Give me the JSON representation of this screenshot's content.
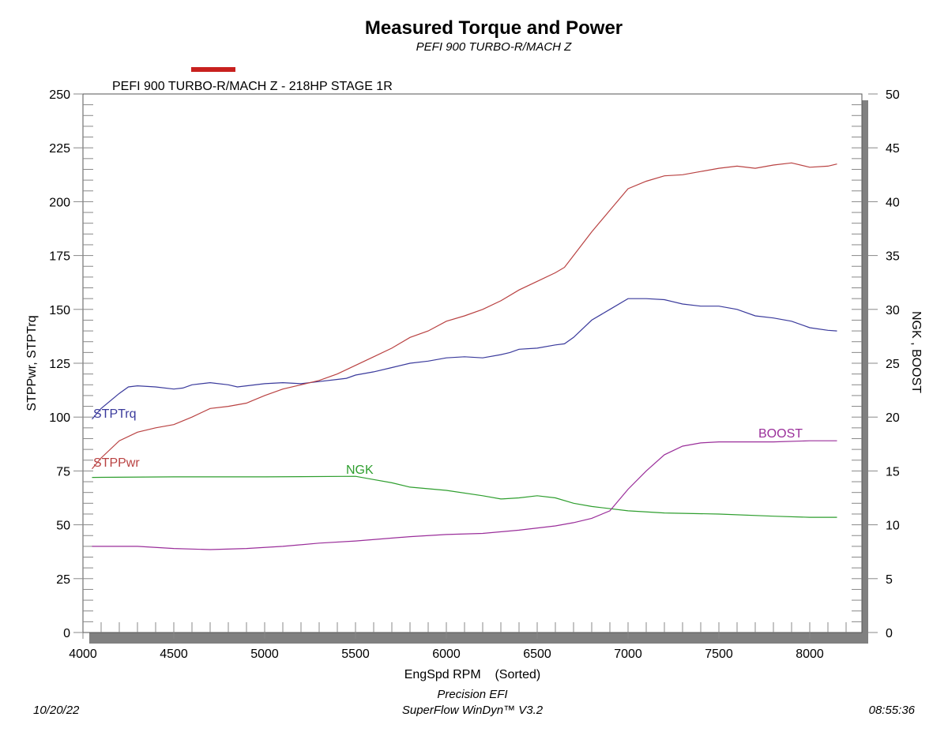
{
  "chart_data": {
    "type": "line",
    "title": "Measured Torque and Power",
    "subtitle": "PEFI 900 TURBO-R/MACH Z",
    "run_label": "PEFI 900 TURBO-R/MACH Z - 218HP STAGE 1R",
    "run_color": "#c8201e",
    "xlabel": "EngSpd RPM    (Sorted)",
    "ylabel": "STPPwr, STPTrq",
    "y2label": "NGK  , BOOST",
    "xlim": [
      4000,
      8290
    ],
    "ylim": [
      0,
      250
    ],
    "y2lim": [
      0,
      50
    ],
    "xticks": [
      4000,
      4500,
      5000,
      5500,
      6000,
      6500,
      7000,
      7500,
      8000
    ],
    "yticks": [
      0,
      25,
      50,
      75,
      100,
      125,
      150,
      175,
      200,
      225,
      250
    ],
    "y2ticks": [
      0,
      5,
      10,
      15,
      20,
      25,
      30,
      35,
      40,
      45,
      50
    ],
    "grid": false,
    "series": [
      {
        "name": "STPTrq",
        "axis": "left",
        "color": "#3a3a9c",
        "x": [
          4050,
          4100,
          4200,
          4250,
          4300,
          4400,
          4500,
          4550,
          4600,
          4700,
          4800,
          4850,
          4900,
          5000,
          5100,
          5200,
          5300,
          5400,
          5450,
          5500,
          5600,
          5700,
          5800,
          5900,
          6000,
          6100,
          6200,
          6300,
          6350,
          6400,
          6500,
          6600,
          6650,
          6700,
          6800,
          6900,
          7000,
          7100,
          7200,
          7300,
          7400,
          7500,
          7600,
          7700,
          7800,
          7900,
          8000,
          8100,
          8150
        ],
        "y": [
          99,
          104,
          111,
          114,
          114.5,
          114,
          113,
          113.5,
          115,
          116,
          115,
          114,
          114.5,
          115.5,
          116,
          115.5,
          116.5,
          117.5,
          118,
          119.5,
          121,
          123,
          125,
          126,
          127.5,
          128,
          127.5,
          129,
          130,
          131.5,
          132,
          133.5,
          134,
          137,
          145,
          150,
          155,
          155,
          154.5,
          152.5,
          151.5,
          151.5,
          150,
          147,
          146,
          144.5,
          141.5,
          140.3,
          140
        ]
      },
      {
        "name": "STPPwr",
        "axis": "left",
        "color": "#b94242",
        "x": [
          4050,
          4100,
          4200,
          4300,
          4400,
          4500,
          4600,
          4700,
          4800,
          4900,
          5000,
          5100,
          5200,
          5300,
          5400,
          5500,
          5600,
          5700,
          5800,
          5900,
          6000,
          6100,
          6200,
          6300,
          6400,
          6500,
          6600,
          6650,
          6700,
          6800,
          6900,
          7000,
          7100,
          7200,
          7300,
          7400,
          7500,
          7600,
          7700,
          7800,
          7900,
          8000,
          8100,
          8150
        ],
        "y": [
          76,
          81,
          89,
          93,
          95,
          96.5,
          100,
          104,
          105,
          106.5,
          110,
          113,
          115,
          117,
          120,
          124,
          128,
          132,
          137,
          140,
          144.5,
          147,
          150,
          154,
          159,
          163,
          167,
          169.5,
          175,
          186,
          196,
          206,
          209.5,
          212,
          212.5,
          214,
          215.5,
          216.5,
          215.5,
          217,
          218,
          216,
          216.5,
          217.5
        ]
      },
      {
        "name": "NGK",
        "axis": "right",
        "color": "#2e9e2e",
        "x": [
          4050,
          4500,
          5000,
          5500,
          5600,
          5700,
          5800,
          6000,
          6200,
          6300,
          6400,
          6500,
          6600,
          6700,
          6800,
          7000,
          7200,
          7500,
          7800,
          8000,
          8150
        ],
        "y": [
          14.4,
          14.45,
          14.45,
          14.5,
          14.2,
          13.9,
          13.5,
          13.2,
          12.7,
          12.4,
          12.5,
          12.7,
          12.5,
          12.0,
          11.7,
          11.3,
          11.1,
          11.0,
          10.8,
          10.7,
          10.7
        ]
      },
      {
        "name": "BOOST",
        "axis": "right",
        "color": "#9a2e9a",
        "x": [
          4050,
          4300,
          4500,
          4700,
          4900,
          5100,
          5300,
          5500,
          5800,
          6000,
          6200,
          6400,
          6600,
          6700,
          6800,
          6900,
          7000,
          7100,
          7200,
          7300,
          7400,
          7500,
          7800,
          8000,
          8150
        ],
        "y": [
          8.0,
          8.0,
          7.8,
          7.7,
          7.8,
          8.0,
          8.3,
          8.5,
          8.9,
          9.1,
          9.2,
          9.5,
          9.9,
          10.2,
          10.6,
          11.3,
          13.3,
          15.0,
          16.5,
          17.3,
          17.6,
          17.7,
          17.7,
          17.8,
          17.8
        ]
      }
    ]
  },
  "footer": {
    "left": "10/20/22",
    "center1": "Precision EFI",
    "center2": "SuperFlow WinDyn™ V3.2",
    "right": "08:55:36"
  }
}
